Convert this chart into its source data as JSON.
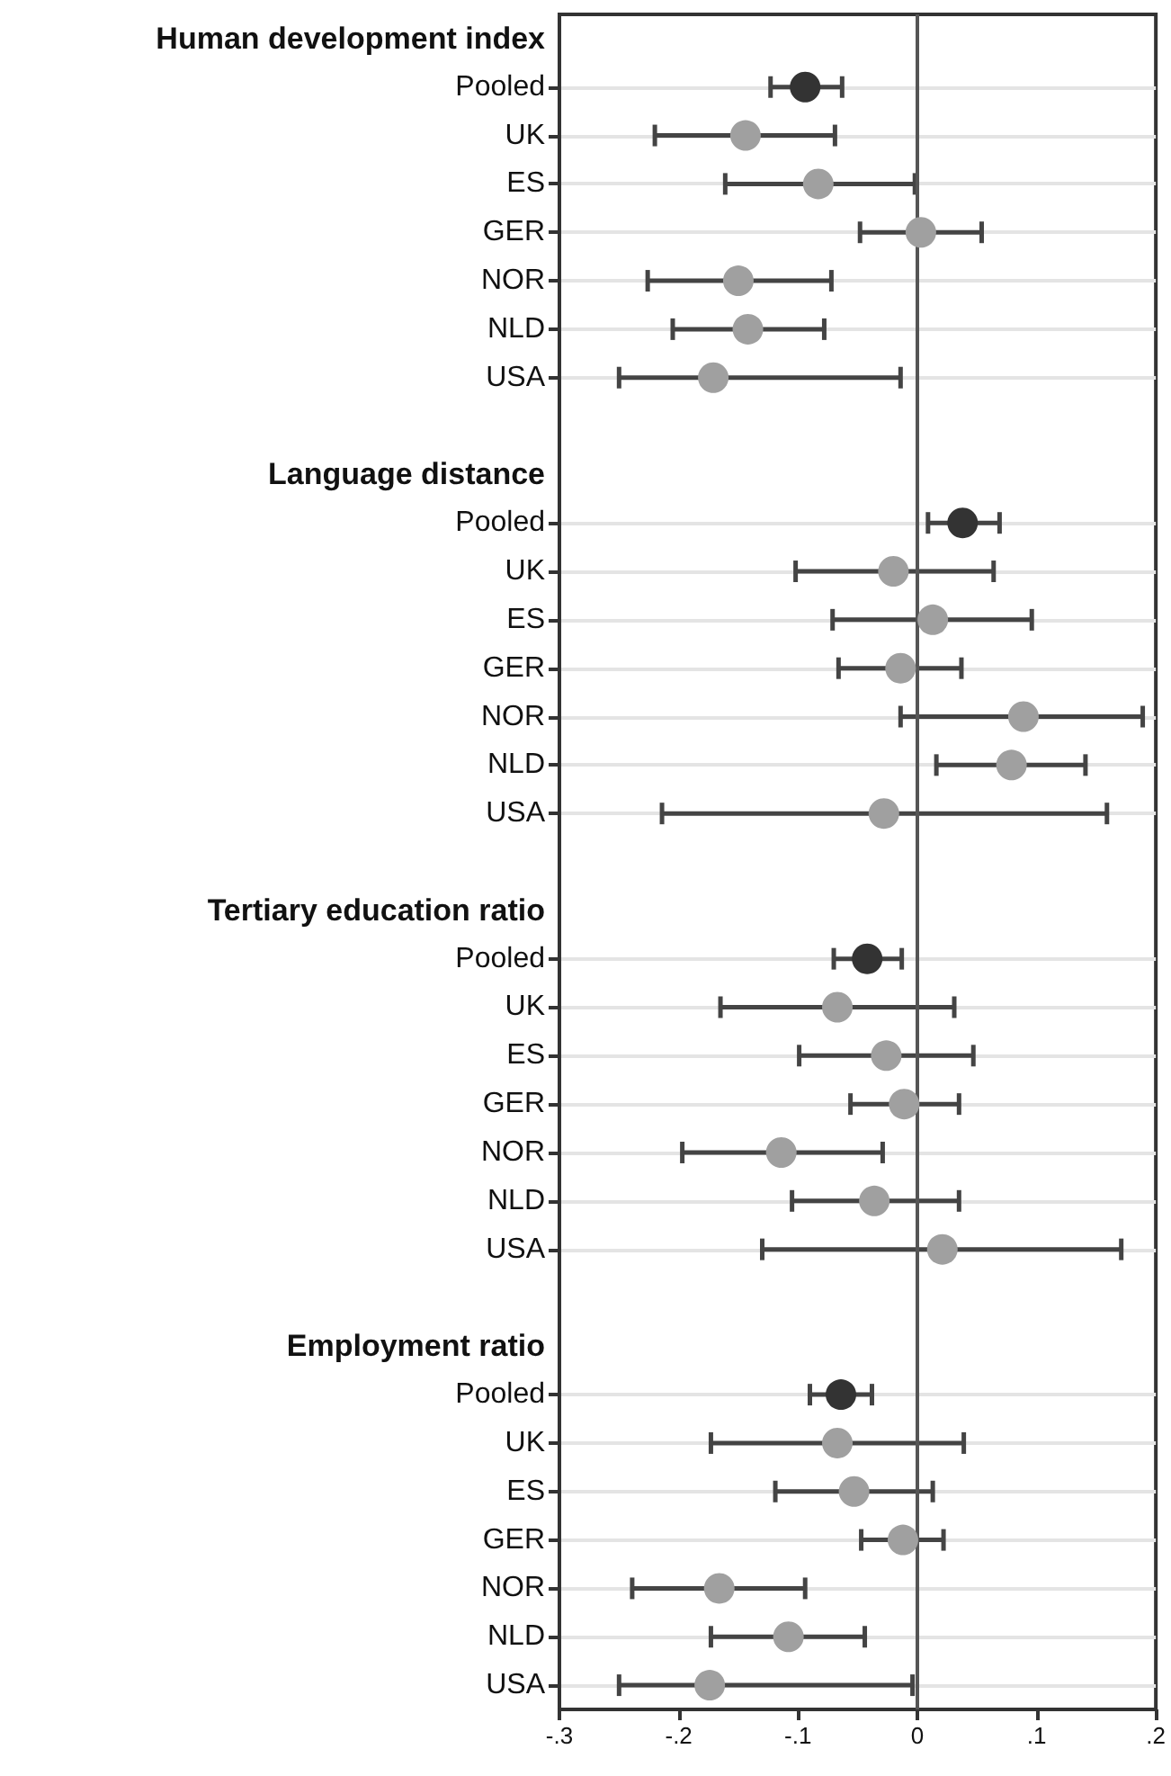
{
  "chart_data": {
    "type": "scatter",
    "orientation": "horizontal",
    "marker": "circle",
    "grid": "y",
    "categories": [
      "Human development index",
      "Pooled",
      "UK",
      "ES",
      "GER",
      "NOR",
      "NLD",
      "USA",
      null,
      "Language distance",
      "Pooled",
      "UK",
      "ES",
      "GER",
      "NOR",
      "NLD",
      "USA",
      null,
      "Tertiary education ratio",
      "Pooled",
      "UK",
      "ES",
      "GER",
      "NOR",
      "NLD",
      "USA",
      null,
      "Employment ratio",
      "Pooled",
      "UK",
      "ES",
      "GER",
      "NOR",
      "NLD",
      "USA"
    ],
    "series": [
      {
        "color": "#333333",
        "values": [
          null,
          -0.094,
          null,
          null,
          null,
          null,
          null,
          null,
          null,
          null,
          0.038,
          null,
          null,
          null,
          null,
          null,
          null,
          null,
          null,
          -0.042,
          null,
          null,
          null,
          null,
          null,
          null,
          null,
          null,
          -0.064,
          null,
          null,
          null,
          null,
          null,
          null
        ],
        "errors": [
          null,
          [
            -0.123,
            -0.063
          ],
          null,
          null,
          null,
          null,
          null,
          null,
          null,
          null,
          [
            0.009,
            0.069
          ],
          null,
          null,
          null,
          null,
          null,
          null,
          null,
          null,
          [
            -0.07,
            -0.013
          ],
          null,
          null,
          null,
          null,
          null,
          null,
          null,
          null,
          [
            -0.09,
            -0.038
          ],
          null,
          null,
          null,
          null,
          null,
          null
        ]
      },
      {
        "color": "#a0a0a0",
        "values": [
          null,
          null,
          -0.144,
          -0.083,
          0.003,
          -0.15,
          -0.142,
          -0.171,
          null,
          null,
          null,
          -0.02,
          0.013,
          -0.014,
          0.089,
          0.079,
          -0.028,
          null,
          null,
          null,
          -0.067,
          -0.026,
          -0.011,
          -0.114,
          -0.036,
          0.021,
          null,
          null,
          null,
          -0.067,
          -0.053,
          -0.012,
          -0.166,
          -0.108,
          -0.174
        ],
        "errors": [
          null,
          null,
          [
            -0.22,
            -0.069
          ],
          [
            -0.161,
            -0.002
          ],
          [
            -0.048,
            0.054
          ],
          [
            -0.226,
            -0.072
          ],
          [
            -0.205,
            -0.078
          ],
          [
            -0.25,
            -0.014
          ],
          null,
          null,
          null,
          [
            -0.102,
            0.064
          ],
          [
            -0.071,
            0.096
          ],
          [
            -0.066,
            0.037
          ],
          [
            -0.014,
            0.189
          ],
          [
            0.016,
            0.141
          ],
          [
            -0.214,
            0.159
          ],
          null,
          null,
          null,
          [
            -0.165,
            0.031
          ],
          [
            -0.099,
            0.047
          ],
          [
            -0.056,
            0.035
          ],
          [
            -0.197,
            -0.029
          ],
          [
            -0.105,
            0.035
          ],
          [
            -0.13,
            0.171
          ],
          null,
          null,
          null,
          [
            -0.173,
            0.039
          ],
          [
            -0.119,
            0.013
          ],
          [
            -0.047,
            0.022
          ],
          [
            -0.239,
            -0.094
          ],
          [
            -0.173,
            -0.044
          ],
          [
            -0.25,
            -0.004
          ]
        ]
      }
    ],
    "xlim": [
      -0.3,
      0.2
    ],
    "xticks": [
      {
        "value": -0.3,
        "label": "-.3"
      },
      {
        "value": -0.2,
        "label": "-.2"
      },
      {
        "value": -0.1,
        "label": "-.1"
      },
      0,
      {
        "value": 0.1,
        "label": ".1"
      },
      {
        "value": 0.2,
        "label": ".2"
      }
    ],
    "ref_lines": [
      {
        "axis": "x",
        "value": 0,
        "color": "#555555",
        "line_style": "solid"
      }
    ]
  }
}
